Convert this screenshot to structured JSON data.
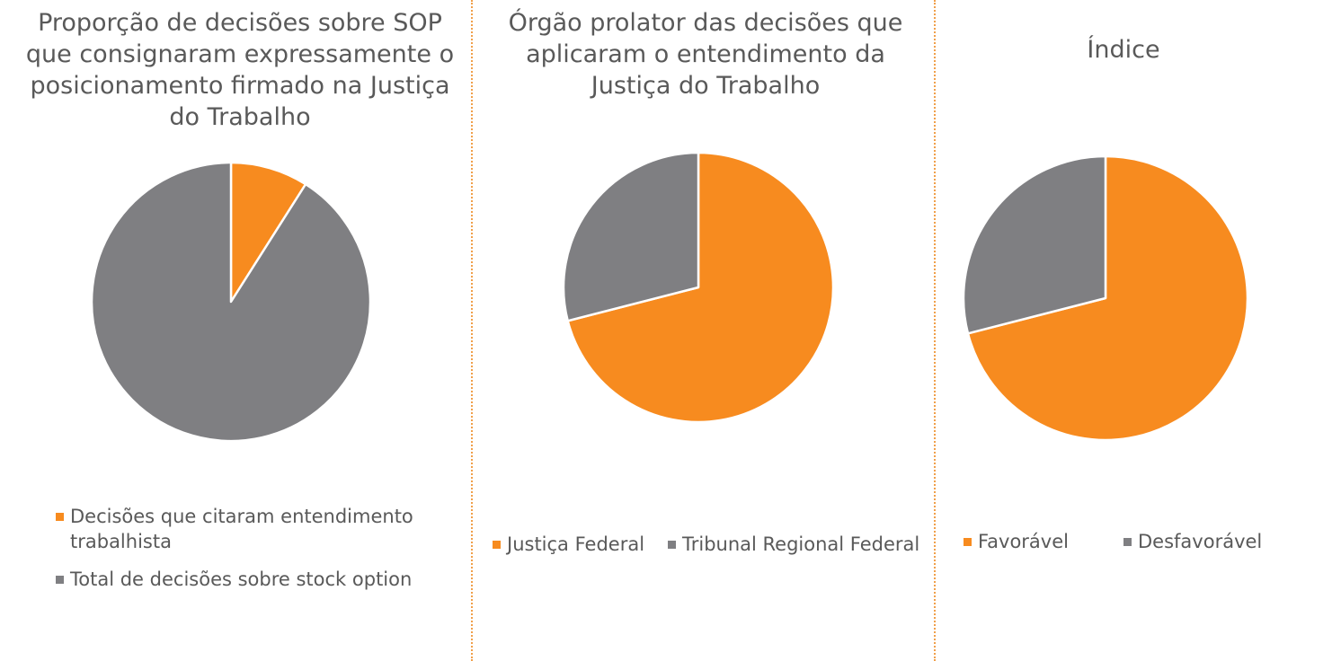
{
  "chart_data": [
    {
      "type": "pie",
      "title": "Proporção de decisões sobre SOP que consignaram expressamente o posicionamento firmado na Justiça do Trabalho",
      "categories": [
        "Decisões que citaram entendimento trabalhista",
        "Total de decisões sobre stock option"
      ],
      "values": [
        9,
        91
      ],
      "colors": [
        "#f78b1f",
        "#7f7f82"
      ]
    },
    {
      "type": "pie",
      "title": "Órgão prolator das decisões que aplicaram o entendimento da Justiça do Trabalho",
      "categories": [
        "Justiça Federal",
        "Tribunal Regional Federal"
      ],
      "values": [
        71,
        29
      ],
      "colors": [
        "#f78b1f",
        "#7f7f82"
      ]
    },
    {
      "type": "pie",
      "title": "Índice",
      "categories": [
        "Favorável",
        "Desfavorável"
      ],
      "values": [
        71,
        29
      ],
      "colors": [
        "#f78b1f",
        "#7f7f82"
      ]
    }
  ]
}
